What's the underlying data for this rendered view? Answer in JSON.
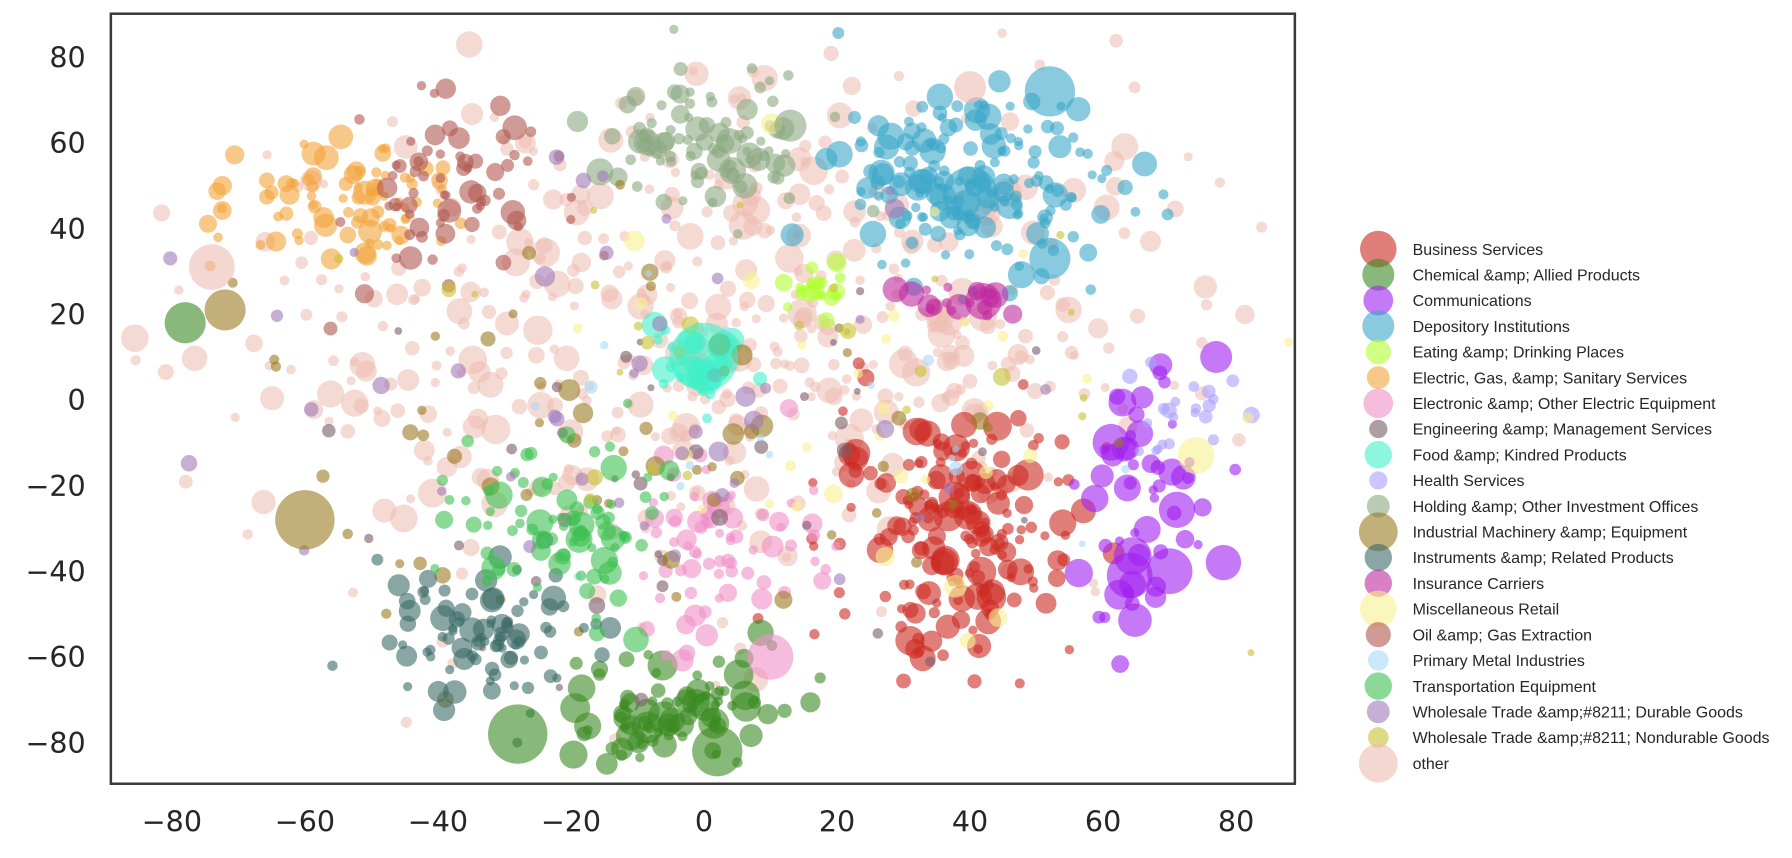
{
  "chart_data": {
    "type": "scatter",
    "title": "",
    "xlabel": "",
    "ylabel": "",
    "xlim": [
      -90,
      90
    ],
    "ylim": [
      -90,
      90
    ],
    "x_ticks": [
      -80,
      -60,
      -40,
      -20,
      0,
      20,
      40,
      60,
      80
    ],
    "y_ticks": [
      80,
      60,
      40,
      20,
      0,
      -20,
      -40,
      -60,
      -80
    ],
    "x_tick_labels": [
      "−80",
      "−60",
      "−40",
      "−20",
      "0",
      "20",
      "40",
      "60",
      "80"
    ],
    "y_tick_labels": [
      "80",
      "60",
      "40",
      "20",
      "0",
      "−20",
      "−40",
      "−60",
      "−80"
    ],
    "grid": false,
    "legend_position": "right",
    "marker": "circle, size-encoded, alpha ~0.6",
    "series": [
      {
        "name": "Business Services",
        "color": "#cc2a22",
        "legend_r": 16,
        "cluster": {
          "cx": 38,
          "cy": -30,
          "sx": 9,
          "sy": 14,
          "n": 190,
          "rmin": 4,
          "rmax": 14
        }
      },
      {
        "name": "Chemical &amp; Allied Products",
        "color": "#3a8a22",
        "legend_r": 14,
        "cluster": {
          "cx": -4,
          "cy": -72,
          "sx": 9,
          "sy": 7,
          "n": 90,
          "rmin": 4,
          "rmax": 14
        }
      },
      {
        "name": "Communications",
        "color": "#a020f0",
        "legend_r": 13,
        "cluster": {
          "cx": 65,
          "cy": -20,
          "sx": 6,
          "sy": 18,
          "n": 55,
          "rmin": 4,
          "rmax": 17
        }
      },
      {
        "name": "Depository Institutions",
        "color": "#3aa6c8",
        "legend_r": 14,
        "cluster": {
          "cx": 40,
          "cy": 50,
          "sx": 10,
          "sy": 10,
          "n": 170,
          "rmin": 4,
          "rmax": 12
        }
      },
      {
        "name": "Eating &amp; Drinking Places",
        "color": "#b0ff30",
        "legend_r": 11,
        "cluster": {
          "cx": 18,
          "cy": 27,
          "sx": 3,
          "sy": 3,
          "n": 20,
          "rmin": 4,
          "rmax": 9
        }
      },
      {
        "name": "Electric, Gas, &amp; Sanitary Services",
        "color": "#f3a33a",
        "legend_r": 10,
        "cluster": {
          "cx": -55,
          "cy": 45,
          "sx": 9,
          "sy": 8,
          "n": 85,
          "rmin": 4,
          "rmax": 11
        }
      },
      {
        "name": "Electronic &amp; Other Electric Equipment",
        "color": "#f090c8",
        "legend_r": 13,
        "cluster": {
          "cx": 3,
          "cy": -35,
          "sx": 7,
          "sy": 10,
          "n": 70,
          "rmin": 4,
          "rmax": 10
        }
      },
      {
        "name": "Engineering &amp; Management Services",
        "color": "#7a5c68",
        "legend_r": 8,
        "cluster": {
          "cx": -8,
          "cy": -20,
          "sx": 25,
          "sy": 25,
          "n": 40,
          "rmin": 3,
          "rmax": 8
        }
      },
      {
        "name": "Food &amp; Kindred Products",
        "color": "#40f0c8",
        "legend_r": 12,
        "cluster": {
          "cx": 0,
          "cy": 8,
          "sx": 5,
          "sy": 4,
          "n": 30,
          "rmin": 4,
          "rmax": 14
        }
      },
      {
        "name": "Health Services",
        "color": "#a8a0ff",
        "legend_r": 8,
        "cluster": {
          "cx": 72,
          "cy": -2,
          "sx": 4,
          "sy": 6,
          "n": 22,
          "rmin": 4,
          "rmax": 8
        }
      },
      {
        "name": "Holding &amp; Other Investment Offices",
        "color": "#8aa880",
        "legend_r": 10,
        "cluster": {
          "cx": 0,
          "cy": 60,
          "sx": 8,
          "sy": 7,
          "n": 90,
          "rmin": 4,
          "rmax": 12
        }
      },
      {
        "name": "Industrial Machinery &amp; Equipment",
        "color": "#9a7a20",
        "legend_r": 17,
        "cluster": {
          "cx": -10,
          "cy": -10,
          "sx": 35,
          "sy": 25,
          "n": 60,
          "rmin": 4,
          "rmax": 10
        }
      },
      {
        "name": "Instruments &amp; Related Products",
        "color": "#3a6a68",
        "legend_r": 12,
        "cluster": {
          "cx": -33,
          "cy": -55,
          "sx": 8,
          "sy": 8,
          "n": 90,
          "rmin": 4,
          "rmax": 12
        }
      },
      {
        "name": "Insurance Carriers",
        "color": "#c02aa0",
        "legend_r": 12,
        "cluster": {
          "cx": 40,
          "cy": 24,
          "sx": 5,
          "sy": 2,
          "n": 20,
          "rmin": 4,
          "rmax": 12
        }
      },
      {
        "name": "Miscellaneous Retail",
        "color": "#f8f090",
        "legend_r": 16,
        "cluster": {
          "cx": 30,
          "cy": -10,
          "sx": 30,
          "sy": 30,
          "n": 35,
          "rmin": 4,
          "rmax": 10
        }
      },
      {
        "name": "Oil &amp; Gas Extraction",
        "color": "#b05850",
        "legend_r": 11,
        "cluster": {
          "cx": -38,
          "cy": 50,
          "sx": 8,
          "sy": 12,
          "n": 70,
          "rmin": 4,
          "rmax": 11
        }
      },
      {
        "name": "Primary Metal Industries",
        "color": "#a8d8f8",
        "legend_r": 9,
        "cluster": {
          "cx": 5,
          "cy": -10,
          "sx": 30,
          "sy": 20,
          "n": 18,
          "rmin": 3,
          "rmax": 7
        }
      },
      {
        "name": "Transportation Equipment",
        "color": "#3cc050",
        "legend_r": 12,
        "cluster": {
          "cx": -22,
          "cy": -28,
          "sx": 8,
          "sy": 10,
          "n": 85,
          "rmin": 4,
          "rmax": 12
        }
      },
      {
        "name": "Wholesale Trade &amp;#8211; Durable Goods",
        "color": "#a07ab8",
        "legend_r": 10,
        "cluster": {
          "cx": -15,
          "cy": 0,
          "sx": 35,
          "sy": 25,
          "n": 45,
          "rmin": 4,
          "rmax": 9
        }
      },
      {
        "name": "Wholesale Trade &amp;#8211; Nondurable Goods",
        "color": "#c8c030",
        "legend_r": 9,
        "cluster": {
          "cx": 0,
          "cy": 0,
          "sx": 35,
          "sy": 30,
          "n": 28,
          "rmin": 3,
          "rmax": 8
        }
      },
      {
        "name": "other",
        "color": "#ecbcb0",
        "legend_r": 17,
        "cluster": {
          "cx": 0,
          "cy": 15,
          "sx": 38,
          "sy": 30,
          "n": 520,
          "rmin": 4,
          "rmax": 13
        }
      }
    ],
    "notable_points": [
      {
        "series": "Depository Institutions",
        "x": 52,
        "y": 72,
        "r": 22
      },
      {
        "series": "Depository Institutions",
        "x": 52,
        "y": 33,
        "r": 18
      },
      {
        "series": "Depository Institutions",
        "x": 40,
        "y": 48,
        "r": 24
      },
      {
        "series": "other",
        "x": 40,
        "y": 73,
        "r": 14
      },
      {
        "series": "Chemical &amp; Allied Products",
        "x": -28,
        "y": -78,
        "r": 26
      },
      {
        "series": "Chemical &amp; Allied Products",
        "x": 2,
        "y": -82,
        "r": 22
      },
      {
        "series": "Chemical &amp; Allied Products",
        "x": -78,
        "y": 18,
        "r": 18
      },
      {
        "series": "Industrial Machinery &amp; Equipment",
        "x": -60,
        "y": -28,
        "r": 26
      },
      {
        "series": "Industrial Machinery &amp; Equipment",
        "x": -72,
        "y": 21,
        "r": 18
      },
      {
        "series": "other",
        "x": -74,
        "y": 31,
        "r": 20
      },
      {
        "series": "Communications",
        "x": 64,
        "y": -41,
        "r": 20
      },
      {
        "series": "Communications",
        "x": 70,
        "y": -40,
        "r": 20
      },
      {
        "series": "Communications",
        "x": 77,
        "y": 10,
        "r": 14
      },
      {
        "series": "Food &amp; Kindred Products",
        "x": 0,
        "y": 10,
        "r": 30
      },
      {
        "series": "Electronic &amp; Other Electric Equipment",
        "x": 10,
        "y": -60,
        "r": 20
      },
      {
        "series": "Insurance Carriers",
        "x": 42,
        "y": 23,
        "r": 16
      },
      {
        "series": "Miscellaneous Retail",
        "x": 74,
        "y": -13,
        "r": 16
      },
      {
        "series": "Holding &amp; Other Investment Offices",
        "x": 13,
        "y": 64,
        "r": 14
      }
    ]
  }
}
